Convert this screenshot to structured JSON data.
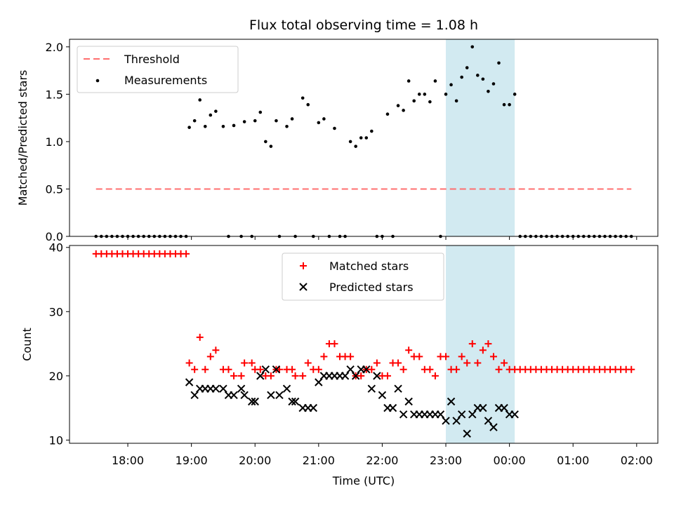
{
  "chart_data": [
    {
      "type": "scatter",
      "title": "Flux total observing time = 1.08 h",
      "xlabel": "",
      "ylabel": "Matched/Predicted stars",
      "ylim": [
        0,
        2.1
      ],
      "yticks": [
        "0.0",
        "0.5",
        "1.0",
        "1.5",
        "2.0"
      ],
      "ytick_values": [
        0,
        0.5,
        1.0,
        1.5,
        2.0
      ],
      "legend_position": "upper-left",
      "highlight_span": {
        "start": "23:00",
        "end": "00:05",
        "color": "#add8e6"
      },
      "series": [
        {
          "name": "Threshold",
          "style": "dashed-line",
          "color": "#ff6f6f",
          "x": [
            "17:30",
            "01:55"
          ],
          "values": [
            0.5,
            0.5
          ]
        },
        {
          "name": "Measurements",
          "style": "dot",
          "color": "#000000",
          "x": [
            "17:30",
            "17:35",
            "17:40",
            "17:45",
            "17:50",
            "17:55",
            "18:00",
            "18:05",
            "18:10",
            "18:15",
            "18:20",
            "18:25",
            "18:30",
            "18:35",
            "18:40",
            "18:45",
            "18:50",
            "18:55",
            "18:58",
            "19:03",
            "19:08",
            "19:13",
            "19:18",
            "19:23",
            "19:30",
            "19:35",
            "19:40",
            "19:47",
            "19:50",
            "19:57",
            "20:00",
            "20:05",
            "20:10",
            "20:15",
            "20:20",
            "20:23",
            "20:30",
            "20:35",
            "20:38",
            "20:45",
            "20:50",
            "20:55",
            "21:00",
            "21:05",
            "21:10",
            "21:15",
            "21:20",
            "21:25",
            "21:30",
            "21:35",
            "21:40",
            "21:45",
            "21:50",
            "21:55",
            "22:00",
            "22:05",
            "22:10",
            "22:15",
            "22:20",
            "22:25",
            "22:30",
            "22:35",
            "22:40",
            "22:45",
            "22:50",
            "22:55",
            "23:00",
            "23:05",
            "23:10",
            "23:15",
            "23:20",
            "23:25",
            "23:30",
            "23:35",
            "23:40",
            "23:45",
            "23:50",
            "23:55",
            "00:00",
            "00:05",
            "00:10",
            "00:15",
            "00:20",
            "00:25",
            "00:30",
            "00:35",
            "00:40",
            "00:45",
            "00:50",
            "00:55",
            "01:00",
            "01:05",
            "01:10",
            "01:15",
            "01:20",
            "01:25",
            "01:30",
            "01:35",
            "01:40",
            "01:45",
            "01:50",
            "01:55"
          ],
          "values": [
            0,
            0,
            0,
            0,
            0,
            0,
            0,
            0,
            0,
            0,
            0,
            0,
            0,
            0,
            0,
            0,
            0,
            0,
            1.15,
            1.22,
            1.44,
            1.16,
            1.28,
            1.32,
            1.16,
            0,
            1.17,
            0,
            1.21,
            0,
            1.22,
            1.31,
            1.0,
            0.95,
            1.22,
            0,
            1.16,
            1.24,
            0,
            1.46,
            1.39,
            0,
            1.2,
            1.24,
            0,
            1.14,
            0,
            0,
            1.0,
            0.95,
            1.04,
            1.04,
            1.11,
            0,
            0,
            1.29,
            0,
            1.38,
            1.33,
            1.64,
            1.43,
            1.5,
            1.5,
            1.42,
            1.64,
            0,
            1.5,
            1.6,
            1.43,
            1.68,
            1.78,
            2.0,
            1.7,
            1.66,
            1.53,
            1.61,
            1.83,
            1.39,
            1.39,
            1.5,
            0,
            0,
            0,
            0,
            0,
            0,
            0,
            0,
            0,
            0,
            0,
            0,
            0,
            0,
            0,
            0,
            0,
            0,
            0,
            0,
            0,
            0
          ]
        }
      ]
    },
    {
      "type": "scatter",
      "title": "",
      "xlabel": "Time (UTC)",
      "ylabel": "Count",
      "ylim": [
        10,
        40
      ],
      "yticks": [
        "10",
        "20",
        "30",
        "40"
      ],
      "ytick_values": [
        10,
        20,
        30,
        40
      ],
      "xticks": [
        "18:00",
        "19:00",
        "20:00",
        "21:00",
        "22:00",
        "23:00",
        "00:00",
        "01:00",
        "02:00"
      ],
      "legend_position": "upper-center",
      "highlight_span": {
        "start": "23:00",
        "end": "00:05",
        "color": "#add8e6"
      },
      "series": [
        {
          "name": "Matched stars",
          "style": "plus",
          "color": "#ff0000",
          "x": [
            "17:30",
            "17:35",
            "17:40",
            "17:45",
            "17:50",
            "17:55",
            "18:00",
            "18:05",
            "18:10",
            "18:15",
            "18:20",
            "18:25",
            "18:30",
            "18:35",
            "18:40",
            "18:45",
            "18:50",
            "18:55",
            "18:58",
            "19:03",
            "19:08",
            "19:13",
            "19:18",
            "19:23",
            "19:30",
            "19:35",
            "19:40",
            "19:47",
            "19:50",
            "19:57",
            "20:00",
            "20:05",
            "20:10",
            "20:15",
            "20:20",
            "20:23",
            "20:30",
            "20:35",
            "20:38",
            "20:45",
            "20:50",
            "20:55",
            "21:00",
            "21:05",
            "21:10",
            "21:15",
            "21:20",
            "21:25",
            "21:30",
            "21:35",
            "21:40",
            "21:45",
            "21:50",
            "21:55",
            "22:00",
            "22:05",
            "22:10",
            "22:15",
            "22:20",
            "22:25",
            "22:30",
            "22:35",
            "22:40",
            "22:45",
            "22:50",
            "22:55",
            "23:00",
            "23:05",
            "23:10",
            "23:15",
            "23:20",
            "23:25",
            "23:30",
            "23:35",
            "23:40",
            "23:45",
            "23:50",
            "23:55",
            "00:00",
            "00:05",
            "00:10",
            "00:15",
            "00:20",
            "00:25",
            "00:30",
            "00:35",
            "00:40",
            "00:45",
            "00:50",
            "00:55",
            "01:00",
            "01:05",
            "01:10",
            "01:15",
            "01:20",
            "01:25",
            "01:30",
            "01:35",
            "01:40",
            "01:45",
            "01:50",
            "01:55"
          ],
          "values": [
            39,
            39,
            39,
            39,
            39,
            39,
            39,
            39,
            39,
            39,
            39,
            39,
            39,
            39,
            39,
            39,
            39,
            39,
            22,
            21,
            26,
            21,
            23,
            24,
            21,
            21,
            20,
            20,
            22,
            22,
            21,
            21,
            20,
            20,
            21,
            21,
            21,
            21,
            20,
            20,
            22,
            21,
            21,
            23,
            25,
            25,
            23,
            23,
            23,
            20,
            20,
            21,
            21,
            22,
            20,
            20,
            22,
            22,
            21,
            24,
            23,
            23,
            21,
            21,
            20,
            23,
            23,
            21,
            21,
            23,
            22,
            25,
            22,
            24,
            25,
            23,
            21,
            22,
            21,
            21,
            21,
            21,
            21,
            21,
            21,
            21,
            21,
            21,
            21,
            21,
            21,
            21,
            21,
            21,
            21,
            21,
            21,
            21,
            21,
            21,
            21,
            21
          ]
        },
        {
          "name": "Predicted stars",
          "style": "cross",
          "color": "#000000",
          "x": [
            "18:58",
            "19:03",
            "19:08",
            "19:13",
            "19:18",
            "19:23",
            "19:30",
            "19:35",
            "19:40",
            "19:47",
            "19:50",
            "19:57",
            "20:00",
            "20:05",
            "20:10",
            "20:15",
            "20:20",
            "20:23",
            "20:30",
            "20:35",
            "20:38",
            "20:45",
            "20:50",
            "20:55",
            "21:00",
            "21:05",
            "21:10",
            "21:15",
            "21:20",
            "21:25",
            "21:30",
            "21:35",
            "21:40",
            "21:45",
            "21:50",
            "21:55",
            "22:00",
            "22:05",
            "22:10",
            "22:15",
            "22:20",
            "22:25",
            "22:30",
            "22:35",
            "22:40",
            "22:45",
            "22:50",
            "22:55",
            "23:00",
            "23:05",
            "23:10",
            "23:15",
            "23:20",
            "23:25",
            "23:30",
            "23:35",
            "23:40",
            "23:45",
            "23:50",
            "23:55",
            "00:00",
            "00:05"
          ],
          "values": [
            19,
            17,
            18,
            18,
            18,
            18,
            18,
            17,
            17,
            18,
            17,
            16,
            16,
            20,
            21,
            17,
            21,
            17,
            18,
            16,
            16,
            15,
            15,
            15,
            19,
            20,
            20,
            20,
            20,
            20,
            21,
            20,
            21,
            21,
            18,
            20,
            17,
            15,
            15,
            18,
            14,
            16,
            14,
            14,
            14,
            14,
            14,
            14,
            13,
            16,
            13,
            14,
            11,
            14,
            15,
            15,
            13,
            12,
            15,
            15,
            14,
            14
          ]
        }
      ]
    }
  ]
}
